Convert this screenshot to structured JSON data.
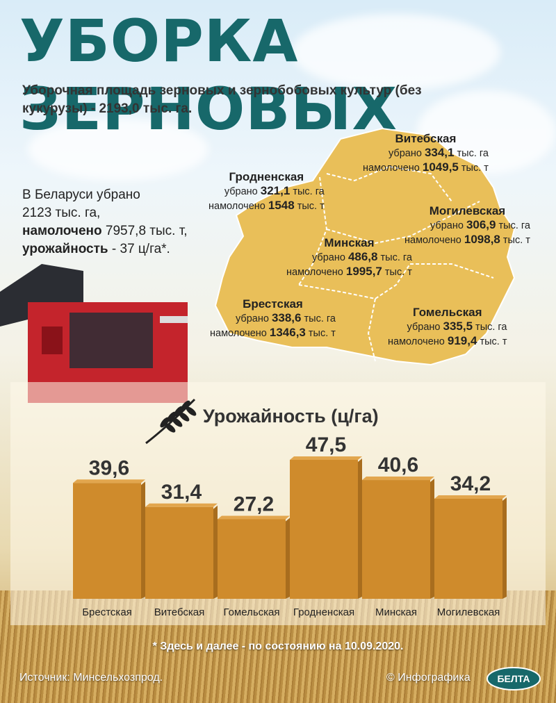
{
  "header": {
    "title": "УБОРКА ЗЕРНОВЫХ",
    "subtitle": "Уборочная площадь зерновых и зернобобовых культур (без кукурузы) - 2193,0 тыс. га."
  },
  "summary": {
    "line1": "В Беларуси убрано",
    "line2": "2123 тыс. га,",
    "threshed_label": "намолочено",
    "threshed_value": " 7957,8 тыс. т,",
    "yield_label": "урожайность",
    "yield_value": " -  37 ц/га*."
  },
  "regions": [
    {
      "name": "Витебская",
      "harvested_label": "убрано ",
      "harvested": "334,1",
      "harvested_unit": " тыс. га",
      "threshed_label": "намолочено ",
      "threshed": "1049,5",
      "threshed_unit": " тыс. т"
    },
    {
      "name": "Гродненская",
      "harvested_label": "убрано ",
      "harvested": "321,1",
      "harvested_unit": " тыс. га",
      "threshed_label": "намолочено ",
      "threshed": "1548",
      "threshed_unit": " тыс. т"
    },
    {
      "name": "Могилевская",
      "harvested_label": "убрано ",
      "harvested": "306,9",
      "harvested_unit": " тыс. га",
      "threshed_label": "намолочено ",
      "threshed": "1098,8",
      "threshed_unit": " тыс. т"
    },
    {
      "name": "Минская",
      "harvested_label": "убрано ",
      "harvested": "486,8",
      "harvested_unit": " тыс. га",
      "threshed_label": "намолочено ",
      "threshed": "1995,7",
      "threshed_unit": " тыс. т"
    },
    {
      "name": "Брестская",
      "harvested_label": "убрано ",
      "harvested": "338,6",
      "harvested_unit": " тыс. га",
      "threshed_label": "намолочено ",
      "threshed": "1346,3",
      "threshed_unit": " тыс. т"
    },
    {
      "name": "Гомельская",
      "harvested_label": "убрано ",
      "harvested": "335,5",
      "harvested_unit": " тыс. га",
      "threshed_label": "намолочено ",
      "threshed": "919,4",
      "threshed_unit": " тыс. т"
    }
  ],
  "chart_data": {
    "type": "bar",
    "title": "Урожайность (ц/га)",
    "categories": [
      "Брестская",
      "Витебская",
      "Гомельская",
      "Гродненская",
      "Минская",
      "Могилевская"
    ],
    "values": [
      39.6,
      31.4,
      27.2,
      47.5,
      40.6,
      34.2
    ],
    "value_labels": [
      "39,6",
      "31,4",
      "27,2",
      "47,5",
      "40,6",
      "34,2"
    ],
    "ylim": [
      0,
      47.5
    ],
    "grid": false,
    "bar_color": "#cf8b2c"
  },
  "footer": {
    "note": "* Здесь и далее - по состоянию на 10.09.2020.",
    "source": "Источник: Минсельхозпрод.",
    "credit": "© Инфографика",
    "logo_text": "БЕЛТА"
  },
  "colors": {
    "title": "#17686a",
    "map": "#e9bf59",
    "bar": "#cf8b2c"
  },
  "icons": [
    "wheat-icon",
    "combine-harvester-image",
    "belta-logo"
  ]
}
